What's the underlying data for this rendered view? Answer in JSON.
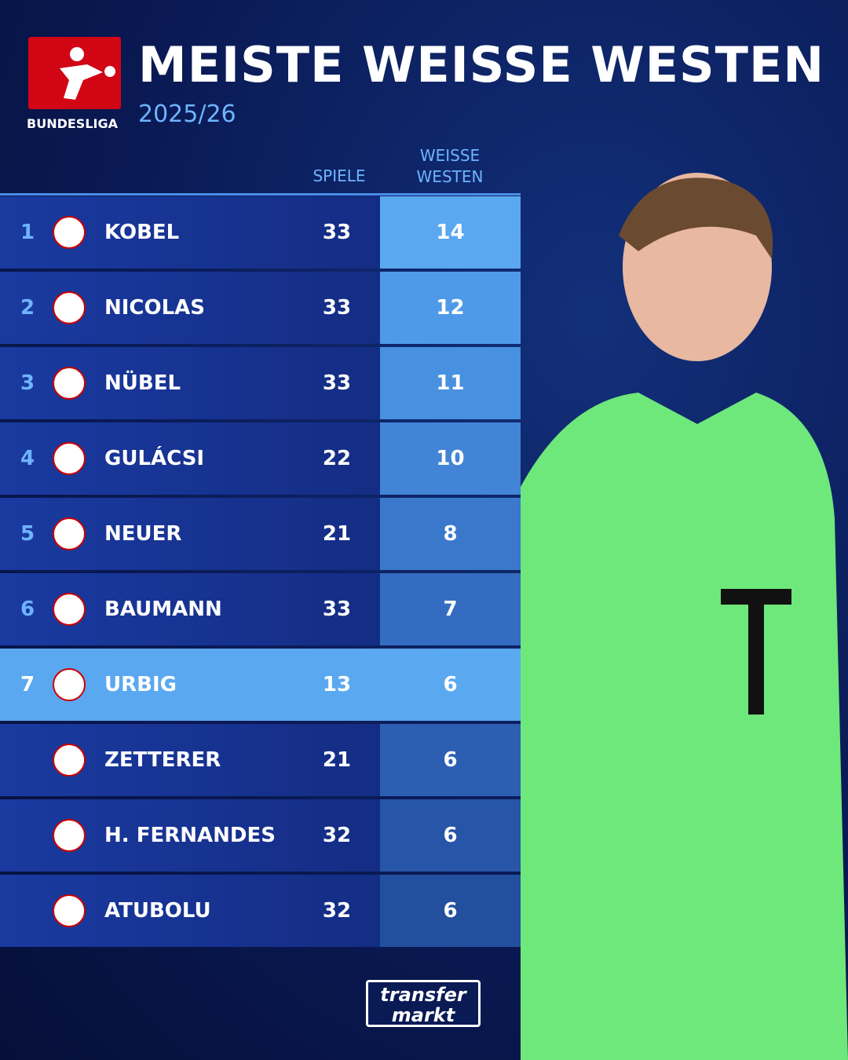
{
  "header": {
    "logo_text": "BUNDESLIGA",
    "title": "MEISTE WEISSE WESTEN",
    "subtitle": "2025/26"
  },
  "table": {
    "columns": [
      "SPIELE",
      "WEISSE WESTEN"
    ],
    "rows": [
      {
        "rank": "1",
        "name": "KOBEL",
        "games": "33",
        "clean_sheets": "14"
      },
      {
        "rank": "2",
        "name": "NICOLAS",
        "games": "33",
        "clean_sheets": "12"
      },
      {
        "rank": "3",
        "name": "NÜBEL",
        "games": "33",
        "clean_sheets": "11"
      },
      {
        "rank": "4",
        "name": "GULÁCSI",
        "games": "22",
        "clean_sheets": "10"
      },
      {
        "rank": "5",
        "name": "NEUER",
        "games": "21",
        "clean_sheets": "8"
      },
      {
        "rank": "6",
        "name": "BAUMANN",
        "games": "33",
        "clean_sheets": "7"
      },
      {
        "rank": "7",
        "name": "URBIG",
        "games": "13",
        "clean_sheets": "6"
      },
      {
        "rank": null,
        "name": "ZETTERER",
        "games": "21",
        "clean_sheets": "6"
      },
      {
        "rank": null,
        "name": "H. FERNANDES",
        "games": "32",
        "clean_sheets": "6"
      },
      {
        "rank": null,
        "name": "ATUBOLU",
        "games": "32",
        "clean_sheets": "6"
      }
    ]
  },
  "footer": {
    "brand_top": "transfer",
    "brand_bottom": "markt"
  }
}
